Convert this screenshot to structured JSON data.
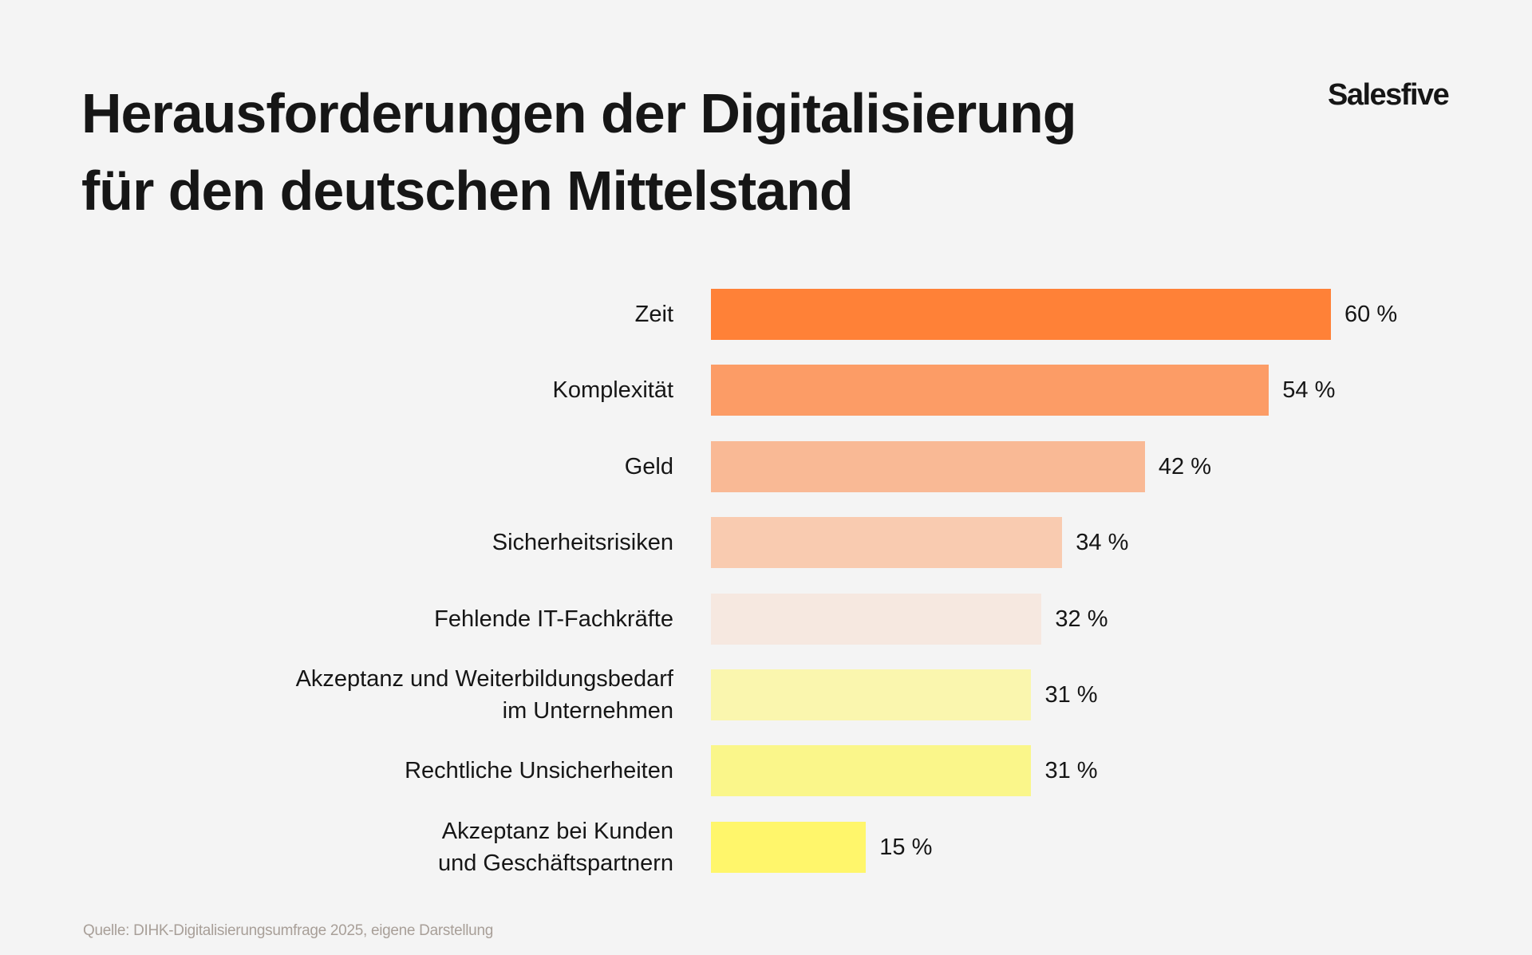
{
  "logo": "Salesfive",
  "chart_data": {
    "type": "bar",
    "orientation": "horizontal",
    "title": [
      "Herausforderungen der Digitalisierung",
      "für den deutschen Mittelstand"
    ],
    "categories": [
      [
        "Zeit"
      ],
      [
        "Komplexität"
      ],
      [
        "Geld"
      ],
      [
        "Sicherheitsrisiken"
      ],
      [
        "Fehlende IT-Fachkräfte"
      ],
      [
        "Akzeptanz und Weiterbildungsbedarf",
        "im Unternehmen"
      ],
      [
        "Rechtliche Unsicherheiten"
      ],
      [
        "Akzeptanz bei Kunden",
        "und Geschäftspartnern"
      ]
    ],
    "values": [
      60,
      54,
      42,
      34,
      32,
      31,
      31,
      15
    ],
    "value_labels": [
      "60 %",
      "54 %",
      "42 %",
      "34 %",
      "32 %",
      "31 %",
      "31 %",
      "15 %"
    ],
    "colors": [
      "#ff8137",
      "#fc9c66",
      "#f9b995",
      "#f9cbb0",
      "#f6e8e0",
      "#faf6ae",
      "#faf68a",
      "#fff66b"
    ],
    "unit": "%",
    "xlim": [
      0,
      60
    ],
    "grid": false,
    "legend": "none"
  },
  "source": "Quelle: DIHK-Digitalisierungsumfrage 2025, eigene Darstellung"
}
